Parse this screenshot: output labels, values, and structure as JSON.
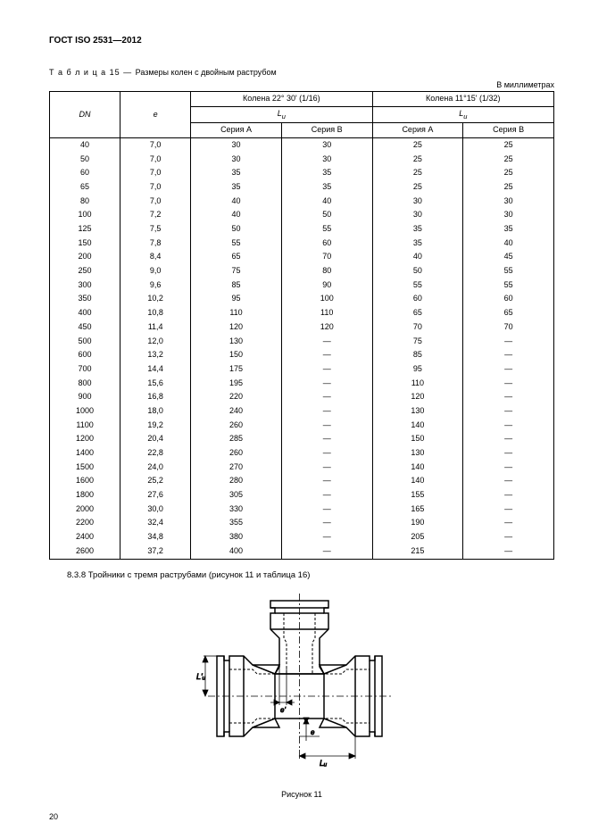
{
  "header": "ГОСТ ISO 2531—2012",
  "table_caption_prefix": "Т а б л и ц а  15 — ",
  "table_caption_text": "Размеры колен с двойным раструбом",
  "units_label": "В миллиметрах",
  "columns": {
    "dn": "DN",
    "e": "e",
    "group1": "Колена 22° 30' (1/16)",
    "group2": "Колена 11°15' (1/32)",
    "lu": "L",
    "lu_sub": "u",
    "seriesA": "Серия А",
    "seriesB": "Серия В"
  },
  "rows": [
    {
      "dn": "40",
      "e": "7,0",
      "a1": "30",
      "b1": "30",
      "a2": "25",
      "b2": "25"
    },
    {
      "dn": "50",
      "e": "7,0",
      "a1": "30",
      "b1": "30",
      "a2": "25",
      "b2": "25"
    },
    {
      "dn": "60",
      "e": "7,0",
      "a1": "35",
      "b1": "35",
      "a2": "25",
      "b2": "25"
    },
    {
      "dn": "65",
      "e": "7,0",
      "a1": "35",
      "b1": "35",
      "a2": "25",
      "b2": "25"
    },
    {
      "dn": "80",
      "e": "7,0",
      "a1": "40",
      "b1": "40",
      "a2": "30",
      "b2": "30"
    },
    {
      "dn": "100",
      "e": "7,2",
      "a1": "40",
      "b1": "50",
      "a2": "30",
      "b2": "30"
    },
    {
      "dn": "125",
      "e": "7,5",
      "a1": "50",
      "b1": "55",
      "a2": "35",
      "b2": "35"
    },
    {
      "dn": "150",
      "e": "7,8",
      "a1": "55",
      "b1": "60",
      "a2": "35",
      "b2": "40"
    },
    {
      "dn": "200",
      "e": "8,4",
      "a1": "65",
      "b1": "70",
      "a2": "40",
      "b2": "45"
    },
    {
      "dn": "250",
      "e": "9,0",
      "a1": "75",
      "b1": "80",
      "a2": "50",
      "b2": "55"
    },
    {
      "dn": "300",
      "e": "9,6",
      "a1": "85",
      "b1": "90",
      "a2": "55",
      "b2": "55"
    },
    {
      "dn": "350",
      "e": "10,2",
      "a1": "95",
      "b1": "100",
      "a2": "60",
      "b2": "60"
    },
    {
      "dn": "400",
      "e": "10,8",
      "a1": "110",
      "b1": "110",
      "a2": "65",
      "b2": "65"
    },
    {
      "dn": "450",
      "e": "11,4",
      "a1": "120",
      "b1": "120",
      "a2": "70",
      "b2": "70"
    },
    {
      "dn": "500",
      "e": "12,0",
      "a1": "130",
      "b1": "—",
      "a2": "75",
      "b2": "—"
    },
    {
      "dn": "600",
      "e": "13,2",
      "a1": "150",
      "b1": "—",
      "a2": "85",
      "b2": "—"
    },
    {
      "dn": "700",
      "e": "14,4",
      "a1": "175",
      "b1": "—",
      "a2": "95",
      "b2": "—"
    },
    {
      "dn": "800",
      "e": "15,6",
      "a1": "195",
      "b1": "—",
      "a2": "110",
      "b2": "—"
    },
    {
      "dn": "900",
      "e": "16,8",
      "a1": "220",
      "b1": "—",
      "a2": "120",
      "b2": "—"
    },
    {
      "dn": "1000",
      "e": "18,0",
      "a1": "240",
      "b1": "—",
      "a2": "130",
      "b2": "—"
    },
    {
      "dn": "1100",
      "e": "19,2",
      "a1": "260",
      "b1": "—",
      "a2": "140",
      "b2": "—"
    },
    {
      "dn": "1200",
      "e": "20,4",
      "a1": "285",
      "b1": "—",
      "a2": "150",
      "b2": "—"
    },
    {
      "dn": "1400",
      "e": "22,8",
      "a1": "260",
      "b1": "—",
      "a2": "130",
      "b2": "—"
    },
    {
      "dn": "1500",
      "e": "24,0",
      "a1": "270",
      "b1": "—",
      "a2": "140",
      "b2": "—"
    },
    {
      "dn": "1600",
      "e": "25,2",
      "a1": "280",
      "b1": "—",
      "a2": "140",
      "b2": "—"
    },
    {
      "dn": "1800",
      "e": "27,6",
      "a1": "305",
      "b1": "—",
      "a2": "155",
      "b2": "—"
    },
    {
      "dn": "2000",
      "e": "30,0",
      "a1": "330",
      "b1": "—",
      "a2": "165",
      "b2": "—"
    },
    {
      "dn": "2200",
      "e": "32,4",
      "a1": "355",
      "b1": "—",
      "a2": "190",
      "b2": "—"
    },
    {
      "dn": "2400",
      "e": "34,8",
      "a1": "380",
      "b1": "—",
      "a2": "205",
      "b2": "—"
    },
    {
      "dn": "2600",
      "e": "37,2",
      "a1": "400",
      "b1": "—",
      "a2": "215",
      "b2": "—"
    }
  ],
  "section_caption": "8.3.8 Тройники с тремя раструбами (рисунок 11 и таблица 16)",
  "figure_label": "Рисунок 11",
  "figure_dims": {
    "Lu": "Lᵤ",
    "Lu2": "Lᵤ",
    "e": "e",
    "e2": "e"
  },
  "page_number": "20",
  "colors": {
    "text": "#000000",
    "border": "#000000",
    "background": "#ffffff"
  },
  "column_widths_pct": [
    14,
    14,
    18,
    18,
    18,
    18
  ]
}
